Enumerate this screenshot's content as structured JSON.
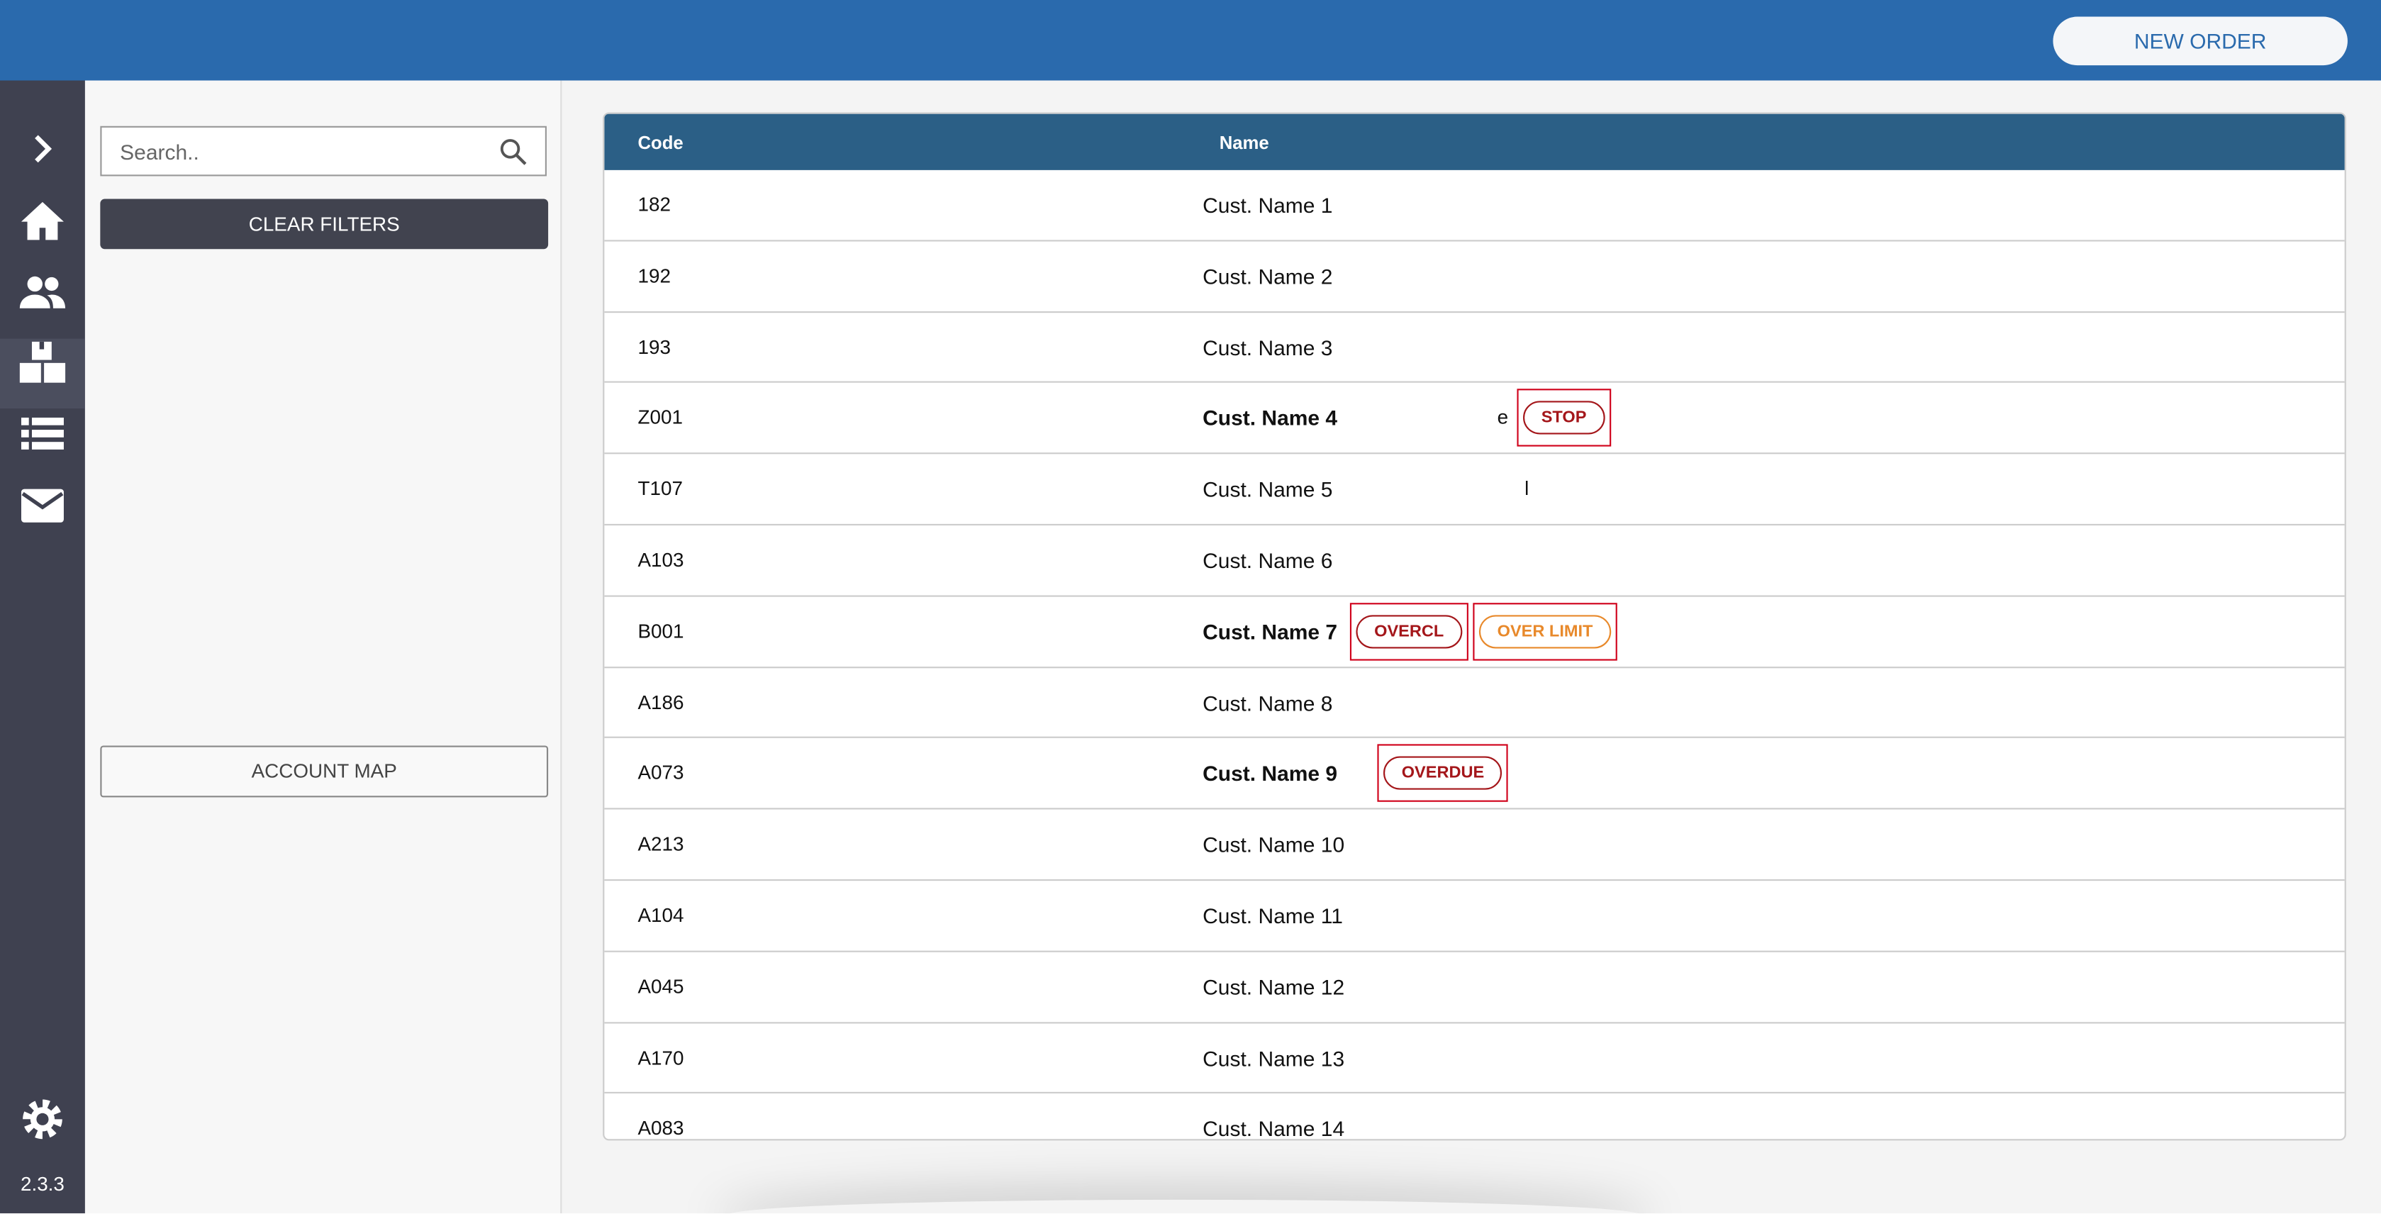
{
  "header": {
    "button": "NEW ORDER"
  },
  "sidebar": {
    "version": "2.3.3"
  },
  "filters": {
    "search_placeholder": "Search..",
    "clear_button": "CLEAR FILTERS",
    "map_button": "ACCOUNT MAP"
  },
  "table": {
    "columns": [
      "Code",
      "Name"
    ],
    "rows": [
      {
        "code": "182",
        "name": "Cust. Name 1"
      },
      {
        "code": "192",
        "name": "Cust. Name 2"
      },
      {
        "code": "193",
        "name": "Cust. Name 3"
      },
      {
        "code": "Z001",
        "name": "Cust. Name 4",
        "bold": true,
        "extra": "e",
        "badges": [
          {
            "text": "STOP",
            "color": "#a4161a"
          }
        ]
      },
      {
        "code": "T107",
        "name": "Cust. Name 5",
        "extra": "l"
      },
      {
        "code": "A103",
        "name": "Cust. Name 6"
      },
      {
        "code": "B001",
        "name": "Cust. Name 7",
        "bold": true,
        "badges": [
          {
            "text": "OVERCL",
            "color": "#a4161a"
          },
          {
            "text": "OVER LIMIT",
            "color": "#e8892b"
          }
        ]
      },
      {
        "code": "A186",
        "name": "Cust. Name 8"
      },
      {
        "code": "A073",
        "name": "Cust. Name 9",
        "bold": true,
        "badges": [
          {
            "text": "OVERDUE",
            "color": "#a4161a"
          }
        ]
      },
      {
        "code": "A213",
        "name": "Cust. Name 10"
      },
      {
        "code": "A104",
        "name": "Cust. Name 11"
      },
      {
        "code": "A045",
        "name": "Cust. Name 12"
      },
      {
        "code": "A170",
        "name": "Cust. Name 13"
      },
      {
        "code": "A083",
        "name": "Cust. Name 14"
      }
    ]
  }
}
